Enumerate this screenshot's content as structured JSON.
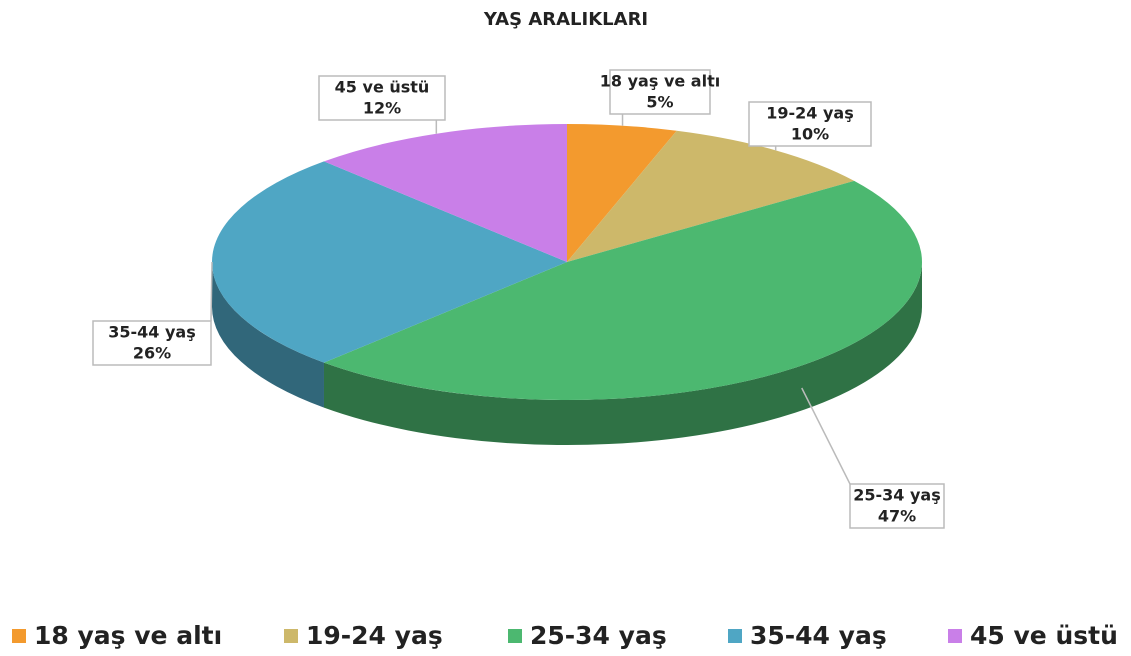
{
  "chart_data": {
    "type": "pie",
    "title": "YAŞ ARALIKLARI",
    "categories": [
      "18 yaş ve altı",
      "19-24 yaş",
      "25-34 yaş",
      "35-44 yaş",
      "45 ve üstü"
    ],
    "values": [
      5,
      10,
      47,
      26,
      12
    ],
    "value_labels": [
      "5%",
      "10%",
      "47%",
      "26%",
      "12%"
    ],
    "colors": [
      "#f39a2e",
      "#cdb86a",
      "#4cb870",
      "#4fa6c4",
      "#c97fe8"
    ],
    "legend": "bottom"
  }
}
